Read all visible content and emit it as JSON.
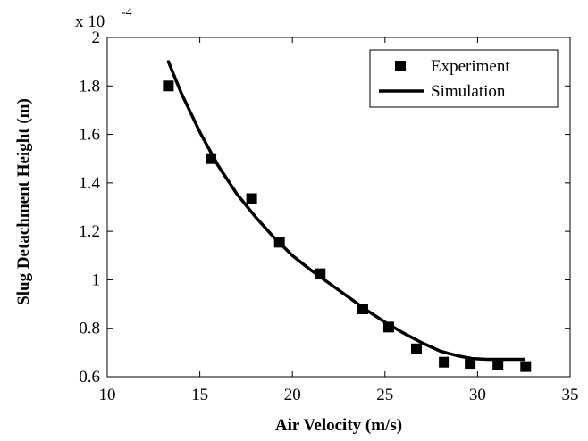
{
  "chart_data": {
    "type": "scatter",
    "title": "",
    "xlabel": "Air Velocity (m/s)",
    "ylabel": "Slug Detachment Height (m)",
    "xlim": [
      10,
      35
    ],
    "ylim": [
      0.6,
      2.0
    ],
    "y_multiplier_label": "x 10",
    "y_multiplier_exponent": "-4",
    "xticks": [
      10,
      15,
      20,
      25,
      30,
      35
    ],
    "yticks": [
      0.6,
      0.8,
      1,
      1.2,
      1.4,
      1.6,
      1.8,
      2
    ],
    "xtick_labels": [
      "10",
      "15",
      "20",
      "25",
      "30",
      "35"
    ],
    "ytick_labels": [
      "0.6",
      "0.8",
      "1",
      "1.2",
      "1.4",
      "1.6",
      "1.8",
      "2"
    ],
    "grid": false,
    "legend_position": "top-right",
    "series": [
      {
        "name": "Experiment",
        "kind": "markers",
        "marker": "square",
        "color": "#000000",
        "x": [
          13.3,
          15.6,
          17.8,
          19.3,
          21.5,
          23.8,
          25.2,
          26.7,
          28.2,
          29.6,
          31.1,
          32.6
        ],
        "y": [
          1.8,
          1.5,
          1.335,
          1.155,
          1.025,
          0.88,
          0.805,
          0.715,
          0.66,
          0.655,
          0.648,
          0.642
        ]
      },
      {
        "name": "Simulation",
        "kind": "line",
        "color": "#000000",
        "x": [
          13.3,
          14.0,
          15.0,
          16.0,
          17.0,
          18.0,
          19.0,
          20.0,
          21.0,
          22.0,
          23.0,
          24.0,
          25.0,
          26.0,
          27.0,
          28.0,
          29.0,
          29.7,
          30.5,
          31.5,
          32.5
        ],
        "y": [
          1.9,
          1.77,
          1.61,
          1.47,
          1.355,
          1.26,
          1.175,
          1.1,
          1.04,
          0.985,
          0.93,
          0.875,
          0.825,
          0.78,
          0.74,
          0.705,
          0.685,
          0.675,
          0.672,
          0.672,
          0.672
        ]
      }
    ]
  }
}
